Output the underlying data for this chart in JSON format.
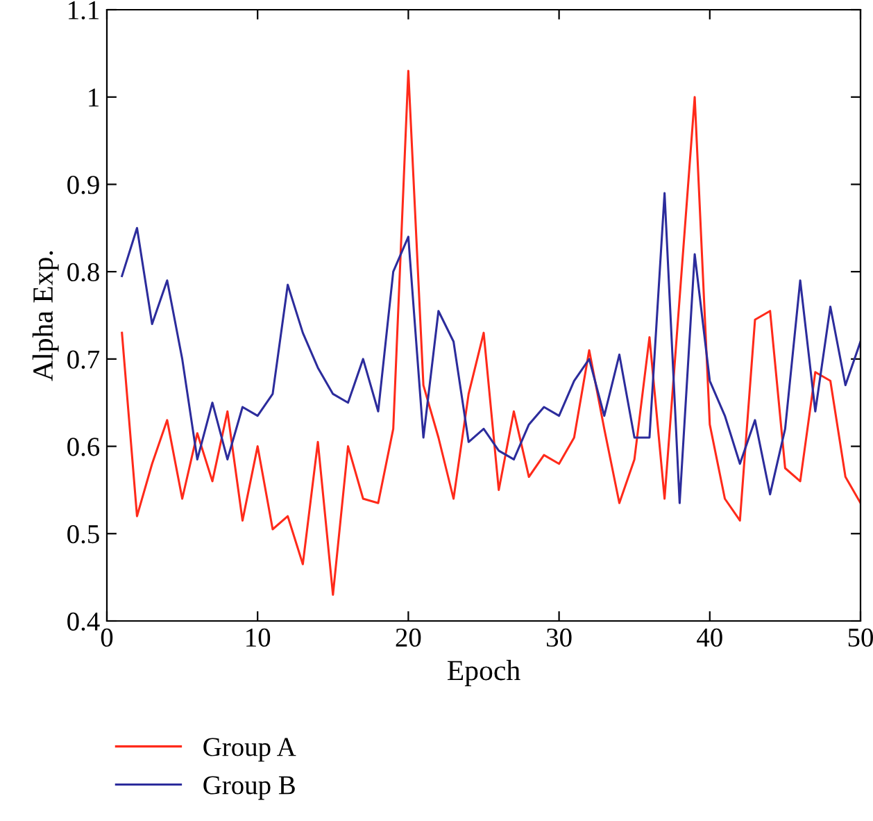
{
  "chart_data": {
    "type": "line",
    "xlabel": "Epoch",
    "ylabel": "Alpha Exp.",
    "x": [
      1,
      2,
      3,
      4,
      5,
      6,
      7,
      8,
      9,
      10,
      11,
      12,
      13,
      14,
      15,
      16,
      17,
      18,
      19,
      20,
      21,
      22,
      23,
      24,
      25,
      26,
      27,
      28,
      29,
      30,
      31,
      32,
      33,
      34,
      35,
      36,
      37,
      38,
      39,
      40,
      41,
      42,
      43,
      44,
      45,
      46,
      47,
      48,
      49,
      50
    ],
    "series": [
      {
        "name": "Group A",
        "color": "#ff2a1a",
        "values": [
          0.73,
          0.52,
          0.58,
          0.63,
          0.54,
          0.615,
          0.56,
          0.64,
          0.515,
          0.6,
          0.505,
          0.52,
          0.465,
          0.605,
          0.43,
          0.6,
          0.54,
          0.535,
          0.62,
          1.03,
          0.67,
          0.61,
          0.54,
          0.66,
          0.73,
          0.55,
          0.64,
          0.565,
          0.59,
          0.58,
          0.61,
          0.71,
          0.62,
          0.535,
          0.585,
          0.725,
          0.54,
          0.77,
          1.0,
          0.625,
          0.54,
          0.515,
          0.745,
          0.755,
          0.575,
          0.56,
          0.685,
          0.675,
          0.565,
          0.535
        ]
      },
      {
        "name": "Group B",
        "color": "#2c2c9c",
        "values": [
          0.795,
          0.85,
          0.74,
          0.79,
          0.7,
          0.585,
          0.65,
          0.585,
          0.645,
          0.635,
          0.66,
          0.785,
          0.73,
          0.69,
          0.66,
          0.65,
          0.7,
          0.64,
          0.8,
          0.84,
          0.61,
          0.755,
          0.72,
          0.605,
          0.62,
          0.595,
          0.585,
          0.625,
          0.645,
          0.635,
          0.675,
          0.7,
          0.635,
          0.705,
          0.61,
          0.61,
          0.89,
          0.535,
          0.82,
          0.675,
          0.635,
          0.58,
          0.63,
          0.545,
          0.62,
          0.79,
          0.64,
          0.76,
          0.67,
          0.72
        ]
      }
    ],
    "xlim": [
      0,
      50
    ],
    "xticks": [
      0,
      10,
      20,
      30,
      40,
      50
    ],
    "ylim": [
      0.4,
      1.1
    ],
    "yticks": [
      0.4,
      0.5,
      0.6,
      0.7,
      0.8,
      0.9,
      1,
      1.1
    ],
    "grid": false,
    "legend": "bottom left",
    "marker": "none",
    "line_style": "solid"
  }
}
